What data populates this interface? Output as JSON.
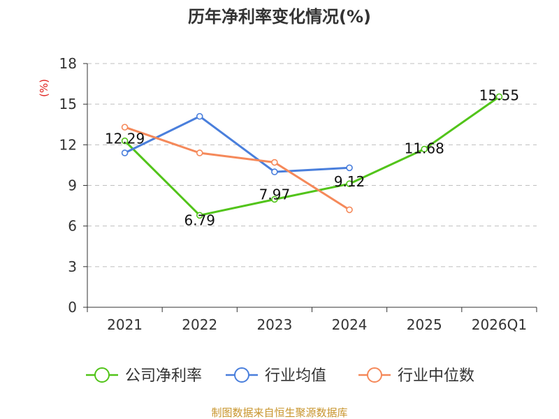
{
  "chart_data": {
    "type": "line",
    "title": "历年净利率变化情况(%)",
    "xlabel": "",
    "ylabel": "(%)",
    "categories": [
      "2021",
      "2022",
      "2023",
      "2024",
      "2025",
      "2026Q1"
    ],
    "ylim": [
      0,
      18
    ],
    "yticks": [
      0,
      3,
      6,
      9,
      12,
      15,
      18
    ],
    "grid": true,
    "legend_position": "bottom",
    "series": [
      {
        "name": "公司净利率",
        "color": "#52c41a",
        "values": [
          12.29,
          6.79,
          7.97,
          9.12,
          11.68,
          15.55
        ],
        "labels": [
          "12.29",
          "6.79",
          "7.97",
          "9.12",
          "11.68",
          "15.55"
        ]
      },
      {
        "name": "行业均值",
        "color": "#4a7fdc",
        "values": [
          11.4,
          14.1,
          10.0,
          10.3,
          null,
          null
        ]
      },
      {
        "name": "行业中位数",
        "color": "#f5895a",
        "values": [
          13.3,
          11.4,
          10.7,
          7.2,
          null,
          null
        ]
      }
    ]
  },
  "source": "制图数据来自恒生聚源数据库"
}
